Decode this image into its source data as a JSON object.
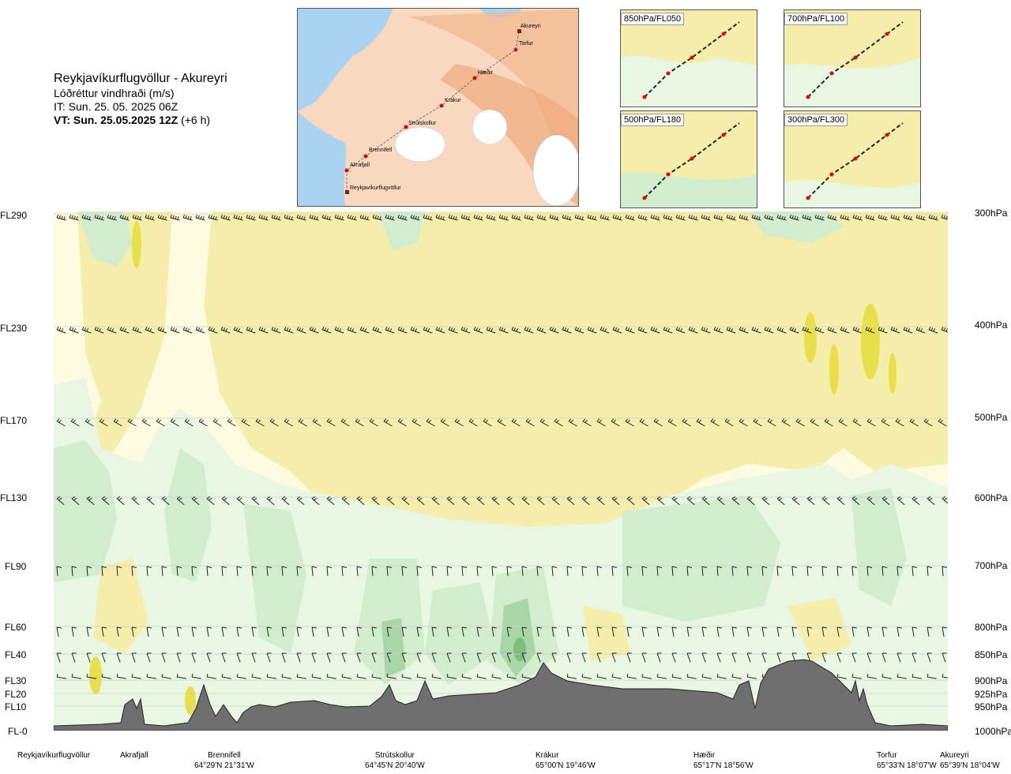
{
  "header": {
    "route": "Reykjavíkurflugvöllur - Akureyri",
    "subtitle": "Lóðréttur vindhraði (m/s)",
    "issue_time": "IT: Sun. 25. 05. 2025 06Z",
    "valid_time": "VT: Sun. 25.05.2025 12Z",
    "valid_offset": "(+6 h)"
  },
  "map": {
    "waypoints": [
      "Akureyri",
      "Torfur",
      "Hæðir",
      "Krákur",
      "Strútskollur",
      "Brennifell",
      "Akrafjall",
      "Reykjavíkurflugvöllur"
    ]
  },
  "level_panels": [
    {
      "label": "850hPa/FL050"
    },
    {
      "label": "700hPa/FL100"
    },
    {
      "label": "500hPa/FL180"
    },
    {
      "label": "300hPa/FL300"
    }
  ],
  "chart_data": {
    "type": "heatmap",
    "title": "Lóðréttur vindhraði (m/s)",
    "flight_levels": [
      {
        "fl": "FL290",
        "hpa": "300hPa"
      },
      {
        "fl": "FL230",
        "hpa": "400hPa"
      },
      {
        "fl": "FL170",
        "hpa": "500hPa"
      },
      {
        "fl": "FL130",
        "hpa": "600hPa"
      },
      {
        "fl": "FL90",
        "hpa": "700hPa"
      },
      {
        "fl": "FL60",
        "hpa": "800hPa"
      },
      {
        "fl": "FL40",
        "hpa": "850hPa"
      },
      {
        "fl": "FL30",
        "hpa": "900hPa"
      },
      {
        "fl": "FL20",
        "hpa": "925hPa"
      },
      {
        "fl": "FL10",
        "hpa": "950hPa"
      },
      {
        "fl": "FL-0",
        "hpa": "1000hPa"
      }
    ],
    "locations": [
      {
        "name": "Reykjavíkurflugvöllur",
        "coord": ""
      },
      {
        "name": "Akrafjall",
        "coord": ""
      },
      {
        "name": "Brennifell",
        "coord": "64°29'N 21°31'W"
      },
      {
        "name": "Strútskollur",
        "coord": "64°45'N 20°40'W"
      },
      {
        "name": "Krákur",
        "coord": "65°00'N 19°46'W"
      },
      {
        "name": "Hæðir",
        "coord": "65°17'N 18°56'W"
      },
      {
        "name": "Torfur",
        "coord": "65°33'N 18°07'W"
      },
      {
        "name": "Akureyri",
        "coord": "65°39'N 18°04'W"
      }
    ],
    "colors": {
      "strong_down": "#e8e04a",
      "down": "#f5eeab",
      "weak_down": "#fffbe0",
      "weak_up": "#e8f7e2",
      "up": "#d2ecce",
      "strong_up": "#a9d6a6",
      "terrain": "#6f6f6f"
    }
  }
}
